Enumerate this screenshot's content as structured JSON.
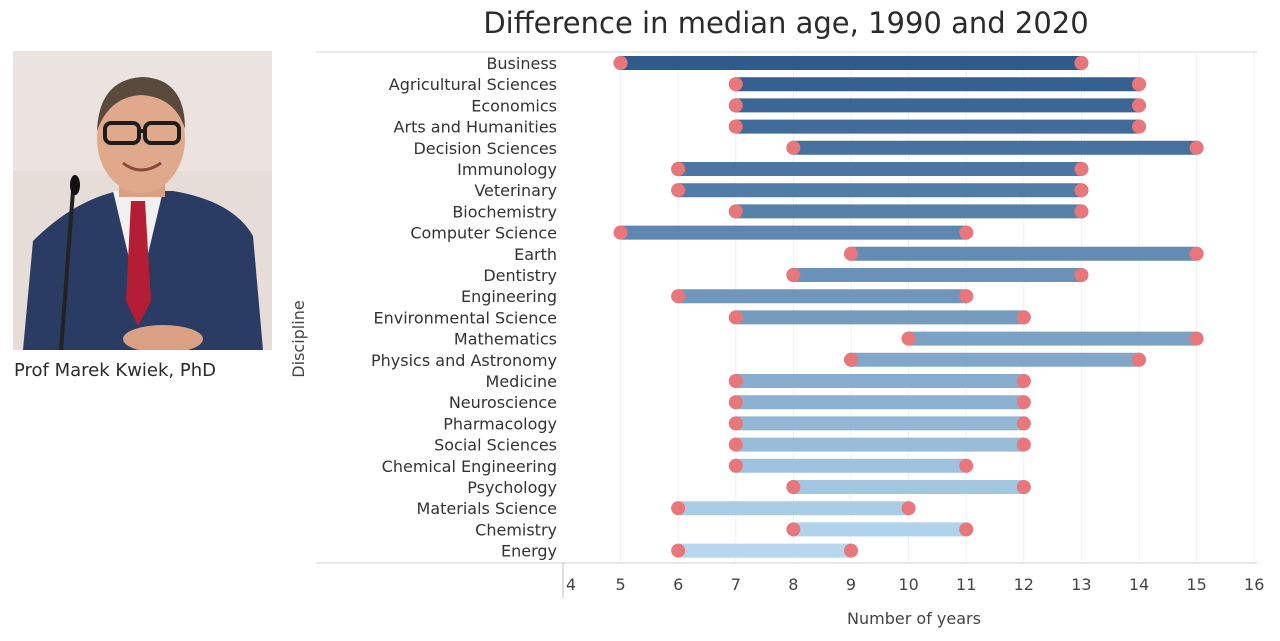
{
  "person": {
    "caption": "Prof Marek Kwiek, PhD"
  },
  "colors": {
    "dot": "#e8767a",
    "bar_dark": "#2f5b8c",
    "bar_light": "#b6d7ee"
  },
  "chart_data": {
    "type": "dumbbell",
    "title": "Difference in median age, 1990 and 2020",
    "xlabel": "Number of years",
    "ylabel": "Discipline",
    "xlim": [
      4,
      16
    ],
    "xticks": [
      4,
      5,
      6,
      7,
      8,
      9,
      10,
      11,
      12,
      13,
      14,
      15,
      16
    ],
    "grid": "vertical",
    "categories": [
      "Business",
      "Agricultural Sciences",
      "Economics",
      "Arts and Humanities",
      "Decision Sciences",
      "Immunology",
      "Veterinary",
      "Biochemistry",
      "Computer Science",
      "Earth",
      "Dentistry",
      "Engineering",
      "Environmental Science",
      "Mathematics",
      "Physics and Astronomy",
      "Medicine",
      "Neuroscience",
      "Pharmacology",
      "Social Sciences",
      "Chemical Engineering",
      "Psychology",
      "Materials Science",
      "Chemistry",
      "Energy"
    ],
    "ranges": [
      [
        5,
        13
      ],
      [
        7,
        14
      ],
      [
        7,
        14
      ],
      [
        7,
        14
      ],
      [
        8,
        15
      ],
      [
        6,
        13
      ],
      [
        6,
        13
      ],
      [
        7,
        13
      ],
      [
        5,
        11
      ],
      [
        9,
        15
      ],
      [
        8,
        13
      ],
      [
        6,
        11
      ],
      [
        7,
        12
      ],
      [
        10,
        15
      ],
      [
        9,
        14
      ],
      [
        7,
        12
      ],
      [
        7,
        12
      ],
      [
        7,
        12
      ],
      [
        7,
        12
      ],
      [
        7,
        11
      ],
      [
        8,
        12
      ],
      [
        6,
        10
      ],
      [
        8,
        11
      ],
      [
        6,
        9
      ]
    ]
  }
}
